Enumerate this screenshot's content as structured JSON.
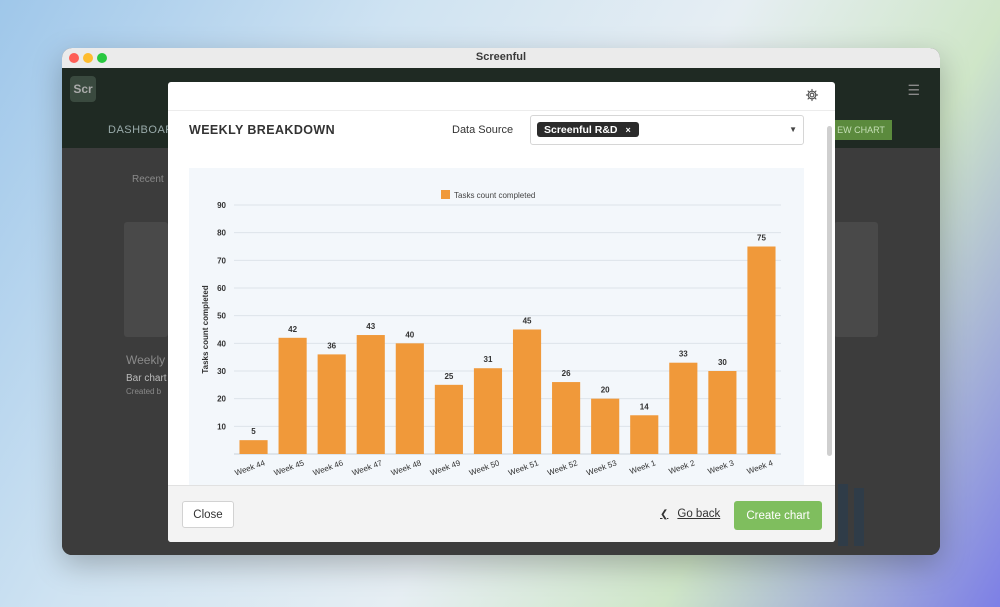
{
  "window": {
    "title": "Screenful"
  },
  "app": {
    "logo_text": "Scr",
    "nav_label": "DASHBOARD",
    "new_chart_label": "EW CHART",
    "recent_label": "Recent",
    "bg_card_title": "Weekly",
    "bg_card_sub": "Bar chart",
    "bg_card_meta": "Created b"
  },
  "modal": {
    "title": "WEEKLY BREAKDOWN",
    "data_source_label": "Data Source",
    "selected_source": "Screenful R&D",
    "remove_icon": "close-icon",
    "close_label": "Close",
    "go_back_label": "Go back",
    "create_label": "Create chart"
  },
  "chart_data": {
    "type": "bar",
    "categories": [
      "Week 44",
      "Week 45",
      "Week 46",
      "Week 47",
      "Week 48",
      "Week 49",
      "Week 50",
      "Week 51",
      "Week 52",
      "Week 53",
      "Week 1",
      "Week 2",
      "Week 3",
      "Week 4"
    ],
    "series": [
      {
        "name": "Tasks count completed",
        "values": [
          5,
          42,
          36,
          43,
          40,
          25,
          31,
          45,
          26,
          20,
          14,
          33,
          30,
          75
        ],
        "color": "#f0993a"
      }
    ],
    "ylabel": "Tasks count completed",
    "ylim": [
      0,
      90
    ],
    "yticks": [
      10,
      20,
      30,
      40,
      50,
      60,
      70,
      80,
      90
    ],
    "legend": "top",
    "grid": true
  }
}
